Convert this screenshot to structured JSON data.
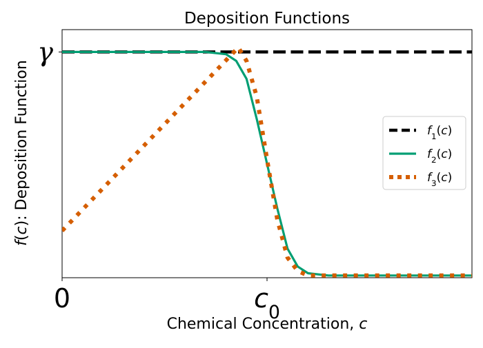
{
  "chart_data": {
    "type": "line",
    "title": "Deposition Functions",
    "xlabel": "Chemical Concentration, c",
    "ylabel": "f(c): Deposition Function",
    "xlim": [
      0,
      2
    ],
    "ylim": [
      -0.01,
      1.1
    ],
    "x_ticks": [
      {
        "value": 0,
        "label": "0"
      },
      {
        "value": 1,
        "label": "c0"
      }
    ],
    "y_ticks": [
      {
        "value": 1,
        "label": "γ"
      }
    ],
    "legend": {
      "position": "center-right",
      "entries": [
        "f1(c)",
        "f2(c)",
        "f3(c)"
      ]
    },
    "grid": false,
    "series": [
      {
        "name": "f1(c)",
        "style": "dashed",
        "color": "#000000",
        "x": [
          0,
          2
        ],
        "y": [
          1,
          1
        ]
      },
      {
        "name": "f2(c)",
        "style": "solid",
        "color": "#009E73",
        "x": [
          0,
          0.7,
          0.8,
          0.85,
          0.9,
          0.95,
          1.0,
          1.05,
          1.1,
          1.15,
          1.2,
          1.3,
          2.0
        ],
        "y": [
          1,
          1,
          0.99,
          0.96,
          0.88,
          0.7,
          0.5,
          0.3,
          0.12,
          0.04,
          0.01,
          0.0,
          0.0
        ]
      },
      {
        "name": "f3(c)",
        "style": "dotted",
        "color": "#D55E00",
        "x": [
          0,
          0.86,
          0.9,
          0.95,
          1.0,
          1.05,
          1.1,
          1.15,
          1.2,
          1.3,
          2.0
        ],
        "y": [
          0.2,
          1.02,
          0.96,
          0.8,
          0.52,
          0.25,
          0.08,
          0.02,
          0.0,
          0.0,
          0.0
        ]
      }
    ]
  }
}
